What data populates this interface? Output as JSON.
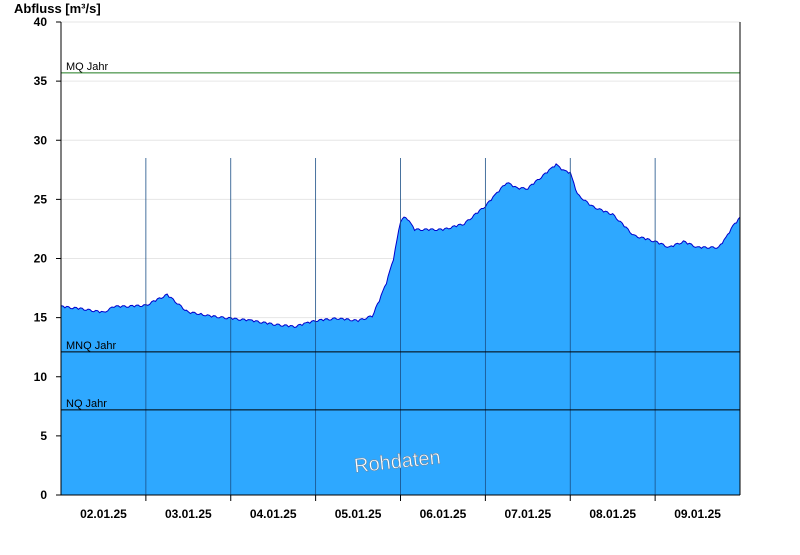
{
  "chart_data": {
    "type": "area",
    "ylabel": "Abfluss [m³/s]",
    "ylim": [
      0,
      40
    ],
    "yticks": [
      0,
      5,
      10,
      15,
      20,
      25,
      30,
      35,
      40
    ],
    "xlim": [
      "2025-01-01T12:00",
      "2025-01-09T12:00"
    ],
    "day_boundaries": [
      "2025-01-02T12:00",
      "2025-01-03T12:00",
      "2025-01-04T12:00",
      "2025-01-05T12:00",
      "2025-01-06T12:00",
      "2025-01-07T12:00",
      "2025-01-08T12:00"
    ],
    "x_tick_labels": [
      "02.01.25",
      "03.01.25",
      "04.01.25",
      "05.01.25",
      "06.01.25",
      "07.01.25",
      "08.01.25",
      "09.01.25"
    ],
    "grid": "horizontal",
    "reference_lines": [
      {
        "label": "MQ Jahr",
        "value": 35.7,
        "color": "#1f7a1f"
      },
      {
        "label": "MNQ Jahr",
        "value": 12.1,
        "color": "#000000"
      },
      {
        "label": "NQ Jahr",
        "value": 7.2,
        "color": "#000000"
      }
    ],
    "series": [
      {
        "area_color": "#2ea8ff",
        "line_color": "#0000cc",
        "x": [
          "2025-01-01T12:00",
          "2025-01-01T18:00",
          "2025-01-02T00:00",
          "2025-01-02T03:00",
          "2025-01-02T06:00",
          "2025-01-02T12:00",
          "2025-01-02T18:00",
          "2025-01-02T22:00",
          "2025-01-03T00:00",
          "2025-01-03T03:00",
          "2025-01-03T06:00",
          "2025-01-03T12:00",
          "2025-01-03T18:00",
          "2025-01-04T00:00",
          "2025-01-04T06:00",
          "2025-01-04T12:00",
          "2025-01-04T18:00",
          "2025-01-05T00:00",
          "2025-01-05T04:00",
          "2025-01-05T06:00",
          "2025-01-05T08:00",
          "2025-01-05T10:00",
          "2025-01-05T12:00",
          "2025-01-05T13:00",
          "2025-01-05T14:00",
          "2025-01-05T16:00",
          "2025-01-06T00:00",
          "2025-01-06T06:00",
          "2025-01-06T12:00",
          "2025-01-06T18:00",
          "2025-01-06T21:00",
          "2025-01-07T00:00",
          "2025-01-07T06:00",
          "2025-01-07T08:00",
          "2025-01-07T10:00",
          "2025-01-07T12:00",
          "2025-01-07T14:00",
          "2025-01-07T18:00",
          "2025-01-07T22:00",
          "2025-01-08T00:00",
          "2025-01-08T06:00",
          "2025-01-08T12:00",
          "2025-01-08T16:00",
          "2025-01-08T20:00",
          "2025-01-09T00:00",
          "2025-01-09T06:00",
          "2025-01-09T08:00",
          "2025-01-09T10:00",
          "2025-01-09T12:00"
        ],
        "y": [
          16.0,
          15.8,
          15.5,
          16.0,
          16.0,
          16.1,
          17.0,
          16.0,
          15.5,
          15.4,
          15.2,
          15.0,
          14.8,
          14.5,
          14.3,
          14.8,
          15.0,
          14.8,
          15.2,
          16.5,
          18.0,
          20.0,
          23.2,
          23.5,
          23.4,
          22.5,
          22.5,
          23.0,
          24.5,
          26.5,
          26.0,
          26.0,
          27.5,
          28.0,
          27.5,
          27.3,
          25.5,
          24.5,
          24.0,
          23.8,
          22.0,
          21.5,
          21.0,
          21.5,
          21.0,
          21.0,
          21.8,
          22.8,
          23.5
        ]
      }
    ],
    "watermark": "Rohdaten"
  }
}
